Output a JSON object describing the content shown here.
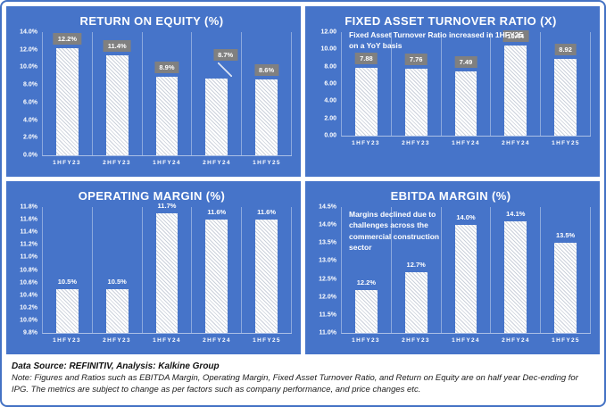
{
  "colors": {
    "panel_blue": "#4674C9",
    "outer_border_blue": "#4472C4",
    "label_box_gray": "#808080",
    "bar_fill_white": "#FFFFFF",
    "title_text": "#FFFFFF"
  },
  "footer": {
    "source_line": "Data Source: REFINITIV, Analysis: Kalkine Group",
    "note_line": "Note: Figures and Ratios such as  EBITDA Margin, Operating Margin, Fixed Asset Turnover Ratio, and Return on Equity are on half year Dec-ending for IPG. The metrics are subject to change as per factors such as company performance, and price changes etc."
  },
  "chart_data": [
    {
      "type": "bar",
      "title": "RETURN ON EQUITY (%)",
      "categories": [
        "1HFY23",
        "2HFY23",
        "1HFY24",
        "2HFY24",
        "1HFY25"
      ],
      "values": [
        12.2,
        11.4,
        8.9,
        8.7,
        8.6
      ],
      "labels": [
        "12.2%",
        "11.4%",
        "8.9%",
        "8.7%",
        "8.6%"
      ],
      "yticks": [
        "14.0%",
        "12.0%",
        "10.0%",
        "8.0%",
        "6.0%",
        "4.0%",
        "2.0%",
        "0.0%"
      ],
      "ylim": [
        0,
        14
      ],
      "label_style": "box",
      "callout_index": 3,
      "annotation": "",
      "grid": "vertical-category-lines",
      "legend": "none"
    },
    {
      "type": "bar",
      "title": "FIXED ASSET TURNOVER RATIO (X)",
      "categories": [
        "1HFY23",
        "2HFY23",
        "1HFY24",
        "2HFY24",
        "1HFY25"
      ],
      "values": [
        7.88,
        7.76,
        7.49,
        10.44,
        8.92
      ],
      "labels": [
        "7.88",
        "7.76",
        "7.49",
        "10.44",
        "8.92"
      ],
      "yticks": [
        "12.00",
        "10.00",
        "8.00",
        "6.00",
        "4.00",
        "2.00",
        "0.00"
      ],
      "ylim": [
        0,
        12
      ],
      "label_style": "box",
      "callout_index": -1,
      "annotation": "Fixed Asset Turnover Ratio increased in 1HFY25 on a YoY basis",
      "grid": "vertical-category-lines",
      "legend": "none"
    },
    {
      "type": "bar",
      "title": "OPERATING MARGIN (%)",
      "categories": [
        "1HFY23",
        "2HFY23",
        "1HFY24",
        "2HFY24",
        "1HFY25"
      ],
      "values": [
        10.5,
        10.5,
        11.7,
        11.6,
        11.6
      ],
      "labels": [
        "10.5%",
        "10.5%",
        "11.7%",
        "11.6%",
        "11.6%"
      ],
      "yticks": [
        "11.8%",
        "11.6%",
        "11.4%",
        "11.2%",
        "11.0%",
        "10.8%",
        "10.6%",
        "10.4%",
        "10.2%",
        "10.0%",
        "9.8%"
      ],
      "ylim": [
        9.8,
        11.8
      ],
      "label_style": "plain",
      "callout_index": -1,
      "annotation": "",
      "grid": "vertical-category-lines",
      "legend": "none"
    },
    {
      "type": "bar",
      "title": "EBITDA MARGIN (%)",
      "categories": [
        "1HFY23",
        "2HFY23",
        "1HFY24",
        "2HFY24",
        "1HFY25"
      ],
      "values": [
        12.2,
        12.7,
        14.0,
        14.1,
        13.5
      ],
      "labels": [
        "12.2%",
        "12.7%",
        "14.0%",
        "14.1%",
        "13.5%"
      ],
      "yticks": [
        "14.5%",
        "14.0%",
        "13.5%",
        "13.0%",
        "12.5%",
        "12.0%",
        "11.5%",
        "11.0%"
      ],
      "ylim": [
        11.0,
        14.5
      ],
      "label_style": "plain",
      "callout_index": -1,
      "annotation": "Margins declined due to challenges across the commercial construction sector",
      "grid": "vertical-category-lines",
      "legend": "none"
    }
  ]
}
